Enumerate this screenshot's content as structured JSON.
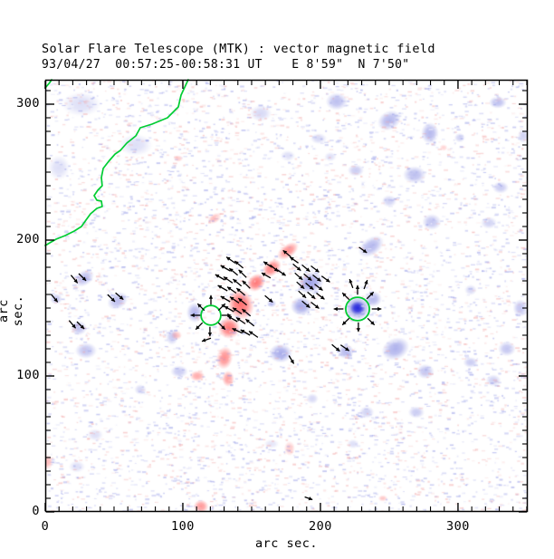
{
  "title": "Solar Flare Telescope (MTK) : vector magnetic field",
  "subtitle": "93/04/27  00:57:25-00:58:31 UT    E 8'59\"  N 7'50\"",
  "chart_data": {
    "type": "heatmap",
    "title": "Solar Flare Telescope (MTK) : vector magnetic field",
    "subtitle": "93/04/27  00:57:25-00:58:31 UT    E 8'59\"  N 7'50\"",
    "xlabel": "arc sec.",
    "ylabel": "arc sec.",
    "xlim": [
      0,
      350.7
    ],
    "ylim": [
      0,
      318
    ],
    "xticks": [
      0,
      100,
      200,
      300
    ],
    "yticks": [
      0,
      100,
      200,
      300
    ],
    "minor_tick_step": 10,
    "grid": false,
    "legend_position": "none",
    "colors": {
      "positive": "#ff5555",
      "negative": "#7a7fe0",
      "negative_core": "#2424dd",
      "contour": "#00cd32",
      "vector": "#000000",
      "frame": "#000000",
      "noise_blue": "#8f95e6",
      "noise_red": "#f2a4a4",
      "noise_white": "#ffffff",
      "background": "#ffffff"
    },
    "noise": {
      "count": 7000,
      "blue_fraction": 0.5,
      "red_fraction": 0.32,
      "seed": 20230427
    },
    "red_blobs": [
      [
        176.3,
        192.0,
        9,
        5,
        -35,
        0.65
      ],
      [
        164.5,
        179.3,
        8,
        5.5,
        -40,
        0.75
      ],
      [
        153.3,
        168.7,
        7.5,
        6,
        -40,
        0.8
      ],
      [
        142.1,
        152.7,
        9.5,
        11.5,
        -20,
        0.85
      ],
      [
        133.6,
        135.3,
        8,
        8,
        0,
        0.8
      ],
      [
        130.3,
        113.3,
        6,
        8.5,
        10,
        0.65
      ],
      [
        132.9,
        98.0,
        4.5,
        6,
        0,
        0.55
      ],
      [
        110.5,
        100.0,
        5.5,
        4,
        0,
        0.5
      ],
      [
        95.4,
        130.0,
        4,
        3.5,
        0,
        0.35
      ],
      [
        123.0,
        216.0,
        5.5,
        3.5,
        -30,
        0.4
      ],
      [
        96.7,
        260.0,
        3.5,
        2.5,
        0,
        0.3
      ],
      [
        113.2,
        4.0,
        5.5,
        5,
        0,
        0.6
      ],
      [
        2.0,
        36.7,
        3.5,
        5.5,
        0,
        0.4
      ],
      [
        177.6,
        46.7,
        4,
        5.5,
        0,
        0.3
      ],
      [
        245.4,
        10.0,
        3.5,
        2.5,
        0,
        0.3
      ],
      [
        289.5,
        268.0,
        3,
        2.5,
        0,
        0.25
      ]
    ],
    "blue_blobs": [
      [
        192.8,
        168.7,
        10,
        8,
        -20,
        0.7
      ],
      [
        186.2,
        151.3,
        8,
        7,
        0,
        0.65
      ],
      [
        227.0,
        150.0,
        9.5,
        9,
        0,
        0.8
      ],
      [
        238.2,
        156.7,
        6.5,
        6,
        0,
        0.55
      ],
      [
        171.1,
        116.7,
        8.5,
        7,
        0,
        0.65
      ],
      [
        218.4,
        118.0,
        6,
        5.5,
        0,
        0.55
      ],
      [
        108.6,
        146.7,
        6,
        7.5,
        0,
        0.55
      ],
      [
        92.1,
        128.7,
        4.5,
        6,
        0,
        0.4
      ],
      [
        164.5,
        153.3,
        3.5,
        3,
        0,
        0.45
      ],
      [
        28.3,
        172.0,
        8,
        5.5,
        -35,
        0.5
      ],
      [
        7.9,
        156.7,
        4.5,
        4,
        0,
        0.45
      ],
      [
        52.6,
        155.3,
        8,
        6,
        -30,
        0.5
      ],
      [
        24.3,
        135.3,
        6,
        5.5,
        0,
        0.45
      ],
      [
        29.6,
        118.7,
        8,
        6,
        0,
        0.45
      ],
      [
        97.4,
        103.3,
        6.5,
        4.5,
        0,
        0.4
      ],
      [
        69.1,
        90.0,
        4.5,
        4,
        0,
        0.3
      ],
      [
        36.2,
        56.7,
        6,
        4.5,
        0,
        0.25
      ],
      [
        23.0,
        33.3,
        6,
        4.5,
        0,
        0.25
      ],
      [
        26.3,
        300.0,
        14,
        9,
        0,
        0.25
      ],
      [
        65.8,
        270.0,
        12,
        8,
        0,
        0.25
      ],
      [
        9.9,
        253.3,
        8,
        9,
        0,
        0.25
      ],
      [
        211.8,
        302.0,
        8,
        6.5,
        0,
        0.5
      ],
      [
        156.6,
        293.3,
        8,
        6,
        0,
        0.3
      ],
      [
        250.0,
        288.0,
        9,
        7,
        -30,
        0.55
      ],
      [
        279.6,
        278.7,
        6.5,
        8,
        0,
        0.55
      ],
      [
        301.3,
        275.3,
        4,
        3.5,
        0,
        0.35
      ],
      [
        328.9,
        301.3,
        6.5,
        4.5,
        0,
        0.5
      ],
      [
        225.7,
        251.3,
        6,
        4.5,
        0,
        0.4
      ],
      [
        268.4,
        248.0,
        8.5,
        6.5,
        0,
        0.5
      ],
      [
        250.0,
        228.7,
        5.5,
        4.5,
        0,
        0.35
      ],
      [
        280.9,
        213.3,
        7,
        6,
        0,
        0.45
      ],
      [
        330.9,
        238.7,
        6,
        4.5,
        0,
        0.4
      ],
      [
        322.4,
        212.7,
        6,
        4.5,
        0,
        0.35
      ],
      [
        236.8,
        195.3,
        10.5,
        6.5,
        -35,
        0.55
      ],
      [
        347.4,
        276.7,
        4,
        5.5,
        0,
        0.35
      ],
      [
        254.6,
        120.0,
        10.5,
        8,
        -25,
        0.6
      ],
      [
        276.3,
        103.3,
        6.5,
        5.5,
        0,
        0.45
      ],
      [
        309.2,
        110.0,
        5.5,
        4,
        0,
        0.4
      ],
      [
        335.5,
        120.0,
        6.5,
        5.5,
        0,
        0.45
      ],
      [
        325.7,
        96.7,
        5.5,
        4.5,
        0,
        0.35
      ],
      [
        269.7,
        73.3,
        6,
        4.5,
        0,
        0.4
      ],
      [
        233.6,
        73.3,
        5.5,
        4.5,
        0,
        0.35
      ],
      [
        223.7,
        50.0,
        4.5,
        3.5,
        0,
        0.25
      ],
      [
        345.4,
        150.0,
        5.5,
        6.5,
        0,
        0.45
      ],
      [
        309.2,
        163.3,
        4.5,
        4,
        0,
        0.3
      ],
      [
        194.1,
        83.3,
        4.5,
        4,
        0,
        0.3
      ],
      [
        164.5,
        50.0,
        5.5,
        3.5,
        0,
        0.2
      ],
      [
        198.7,
        274.7,
        6,
        4,
        0,
        0.3
      ],
      [
        176.3,
        262.0,
        5.5,
        4,
        0,
        0.25
      ],
      [
        207.2,
        261.3,
        4.5,
        3.5,
        0,
        0.25
      ]
    ],
    "core_blobs": [
      [
        227.0,
        150.0,
        5.5,
        5,
        0,
        0.95
      ]
    ],
    "contour_paths": [
      [
        [
          103.9,
          318.0
        ],
        [
          98.7,
          306.7
        ],
        [
          96.7,
          298.0
        ],
        [
          88.8,
          290.0
        ],
        [
          77.6,
          285.3
        ],
        [
          69.1,
          282.7
        ],
        [
          65.8,
          276.7
        ],
        [
          59.2,
          271.3
        ],
        [
          54.6,
          266.0
        ],
        [
          50.7,
          263.3
        ],
        [
          46.1,
          258.0
        ],
        [
          42.1,
          252.7
        ],
        [
          40.8,
          246.0
        ],
        [
          41.4,
          240.0
        ],
        [
          38.2,
          236.7
        ],
        [
          35.5,
          232.7
        ],
        [
          37.5,
          229.3
        ],
        [
          40.8,
          228.7
        ],
        [
          41.4,
          224.7
        ],
        [
          37.5,
          223.3
        ],
        [
          32.9,
          219.3
        ],
        [
          29.6,
          214.7
        ],
        [
          26.3,
          210.0
        ],
        [
          21.1,
          206.7
        ],
        [
          14.5,
          203.3
        ],
        [
          7.9,
          200.7
        ],
        [
          3.3,
          198.0
        ],
        [
          0,
          196.0
        ]
      ],
      [
        [
          0,
          312.0
        ],
        [
          3.0,
          315.6
        ],
        [
          4.6,
          318.0
        ]
      ]
    ],
    "contour_rings": [
      {
        "x": 120.4,
        "y": 144.7,
        "r": 7.2
      },
      {
        "x": 227.0,
        "y": 149.3,
        "r": 8.6
      }
    ],
    "vectors": [
      [
        134.9,
        185.3,
        145,
        8
      ],
      [
        140.8,
        182.0,
        140,
        8
      ],
      [
        130.9,
        179.3,
        150,
        8
      ],
      [
        136.8,
        176.7,
        140,
        8
      ],
      [
        143.4,
        175.3,
        135,
        8
      ],
      [
        127.0,
        172.7,
        150,
        8
      ],
      [
        132.9,
        170.7,
        145,
        8
      ],
      [
        139.5,
        168.7,
        140,
        8
      ],
      [
        146.1,
        167.3,
        135,
        8
      ],
      [
        128.9,
        164.7,
        150,
        8
      ],
      [
        135.5,
        163.3,
        145,
        8
      ],
      [
        142.1,
        162.0,
        140,
        8
      ],
      [
        130.9,
        156.7,
        150,
        8
      ],
      [
        137.5,
        156.0,
        145,
        8
      ],
      [
        143.4,
        154.7,
        140,
        8
      ],
      [
        133.6,
        149.3,
        150,
        8
      ],
      [
        139.5,
        148.0,
        145,
        8
      ],
      [
        146.1,
        146.7,
        140,
        8
      ],
      [
        136.2,
        142.0,
        150,
        8
      ],
      [
        142.1,
        140.7,
        145,
        8
      ],
      [
        148.7,
        139.3,
        140,
        8
      ],
      [
        139.5,
        133.3,
        155,
        8
      ],
      [
        145.4,
        132.0,
        150,
        8
      ],
      [
        151.3,
        130.7,
        145,
        8
      ],
      [
        175.7,
        190.0,
        140,
        7.5
      ],
      [
        180.9,
        185.3,
        145,
        7.5
      ],
      [
        161.8,
        182.0,
        145,
        7.5
      ],
      [
        160.5,
        174.0,
        150,
        7.5
      ],
      [
        166.4,
        179.3,
        -40,
        7.5
      ],
      [
        171.7,
        176.0,
        -35,
        7.5
      ],
      [
        182.9,
        180.0,
        -40,
        7.5
      ],
      [
        189.5,
        179.3,
        -40,
        7.5
      ],
      [
        196.1,
        178.7,
        -38,
        7.5
      ],
      [
        184.2,
        173.3,
        -42,
        7.5
      ],
      [
        190.8,
        172.7,
        -40,
        7.5
      ],
      [
        197.4,
        172.0,
        -38,
        7.5
      ],
      [
        203.9,
        171.3,
        -36,
        7.5
      ],
      [
        185.5,
        166.7,
        -42,
        7.5
      ],
      [
        192.1,
        166.0,
        -40,
        7.5
      ],
      [
        198.7,
        165.3,
        -38,
        7.5
      ],
      [
        186.8,
        160.0,
        -42,
        7.5
      ],
      [
        193.4,
        159.3,
        -40,
        7.5
      ],
      [
        200.0,
        158.7,
        -38,
        7.5
      ],
      [
        189.5,
        152.7,
        -40,
        7.5
      ],
      [
        196.1,
        152.0,
        -38,
        7.5
      ],
      [
        162.5,
        156.7,
        -40,
        7.5
      ],
      [
        120.4,
        156.0,
        90,
        7
      ],
      [
        128.3,
        150.7,
        45,
        7
      ],
      [
        131.6,
        144.7,
        0,
        7
      ],
      [
        128.3,
        136.7,
        -45,
        7
      ],
      [
        119.7,
        132.7,
        -90,
        7
      ],
      [
        111.8,
        136.7,
        -135,
        7
      ],
      [
        109.2,
        144.7,
        180,
        7
      ],
      [
        113.2,
        150.7,
        135,
        7
      ],
      [
        117.1,
        126.7,
        -160,
        7
      ],
      [
        227.0,
        163.3,
        90,
        7
      ],
      [
        236.2,
        159.3,
        45,
        7
      ],
      [
        240.8,
        149.3,
        0,
        7
      ],
      [
        236.8,
        140.0,
        -45,
        7
      ],
      [
        227.6,
        136.0,
        -90,
        7
      ],
      [
        218.4,
        140.0,
        -135,
        7
      ],
      [
        213.2,
        149.3,
        180,
        7
      ],
      [
        218.4,
        158.7,
        135,
        7
      ],
      [
        222.4,
        168.0,
        110,
        7
      ],
      [
        232.9,
        167.3,
        70,
        7
      ],
      [
        21.1,
        171.3,
        -50,
        7.5
      ],
      [
        27.0,
        172.7,
        -45,
        7.5
      ],
      [
        6.6,
        157.3,
        -50,
        7.5
      ],
      [
        48.0,
        157.3,
        -45,
        7.5
      ],
      [
        53.9,
        158.7,
        -40,
        7.5
      ],
      [
        19.7,
        138.0,
        -50,
        7.5
      ],
      [
        25.7,
        137.3,
        -45,
        7.5
      ],
      [
        211.2,
        120.7,
        -40,
        7.5
      ],
      [
        217.8,
        120.7,
        -35,
        7.5
      ],
      [
        230.9,
        192.7,
        -35,
        7
      ],
      [
        178.9,
        112.0,
        -60,
        7
      ],
      [
        191.4,
        10.0,
        -20,
        6
      ]
    ]
  }
}
